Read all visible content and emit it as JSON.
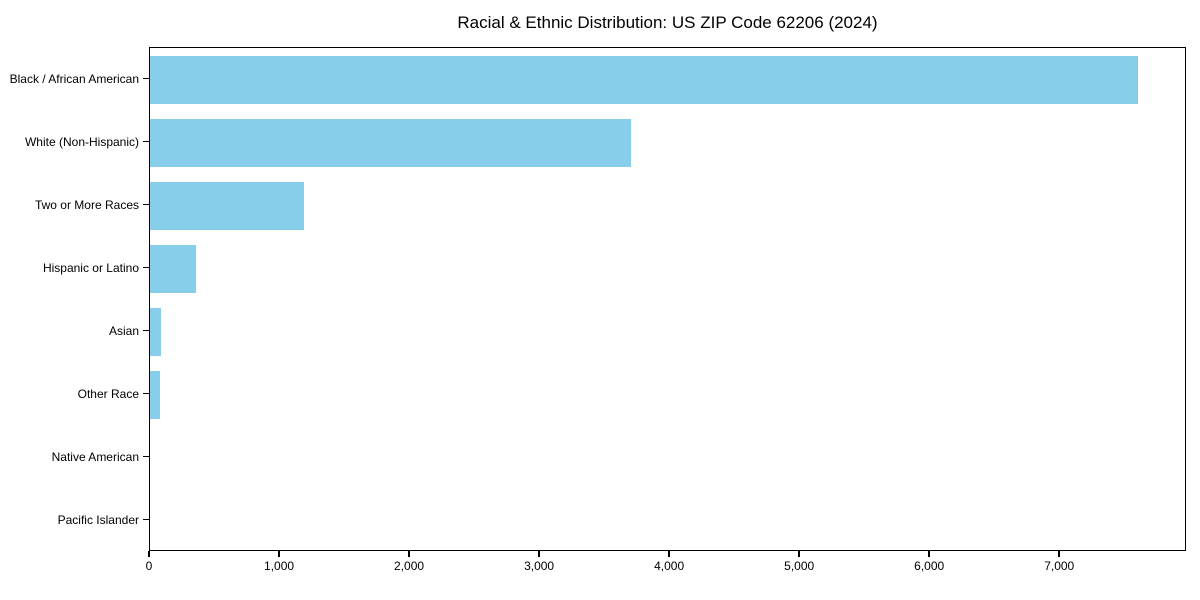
{
  "chart_data": {
    "type": "bar",
    "orientation": "horizontal",
    "title": "Racial & Ethnic Distribution: US ZIP Code 62206 (2024)",
    "categories": [
      "Black / African American",
      "White (Non-Hispanic)",
      "Two or More Races",
      "Hispanic or Latino",
      "Asian",
      "Other Race",
      "Native American",
      "Pacific Islander"
    ],
    "values": [
      7600,
      3700,
      1185,
      355,
      85,
      80,
      0,
      0
    ],
    "xlabel": "",
    "ylabel": "",
    "xlim": [
      0,
      7975
    ],
    "x_ticks": [
      {
        "value": 0,
        "label": "0"
      },
      {
        "value": 1000,
        "label": "1,000"
      },
      {
        "value": 2000,
        "label": "2,000"
      },
      {
        "value": 3000,
        "label": "3,000"
      },
      {
        "value": 4000,
        "label": "4,000"
      },
      {
        "value": 5000,
        "label": "5,000"
      },
      {
        "value": 6000,
        "label": "6,000"
      },
      {
        "value": 7000,
        "label": "7,000"
      }
    ],
    "bar_color": "#87CEEB",
    "axis_color": "#000000",
    "background_color": "#ffffff",
    "grid": false,
    "legend": null
  }
}
